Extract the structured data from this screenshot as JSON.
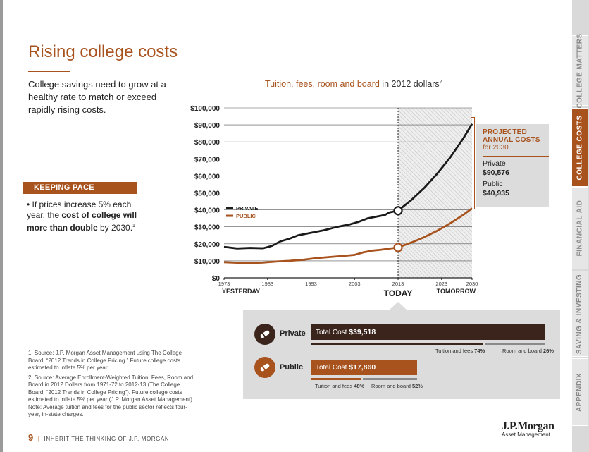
{
  "page": {
    "title": "Rising college costs",
    "intro": "College savings need to grow at a healthy rate to match or exceed rapidly rising costs.",
    "keeping_pace": {
      "label": "KEEPING PACE",
      "text_pre": "• If prices increase 5% each year, the ",
      "text_bold": "cost of college will more than double",
      "text_post": " by 2030.",
      "sup": "1"
    },
    "notes": [
      "1. Source: J.P. Morgan Asset Management using The College Board, “2012 Trends in College Pricing.” Future college costs estimated to inflate 5% per year.",
      "2. Source: Average Enrollment-Weighted Tuition, Fees, Room and Board in 2012 Dollars from 1971-72 to 2012-13 (The College Board, “2012 Trends in College Pricing”). Future college costs estimated to inflate 5% per year (J.P. Morgan Asset Management). Note: Average tuition and fees for the public sector reflects four-year, in-state charges."
    ],
    "footer": {
      "page_number": "9",
      "separator": "|",
      "text": "INHERIT THE THINKING OF J.P. MORGAN"
    },
    "logo": {
      "line1": "J.P.Morgan",
      "line2": "Asset Management"
    }
  },
  "side_tabs": [
    {
      "label": "COLLEGE MATTERS",
      "active": false
    },
    {
      "label": "COLLEGE COSTS",
      "active": true
    },
    {
      "label": "FINANCIAL AID",
      "active": false
    },
    {
      "label": "SAVING & INVESTING",
      "active": false
    },
    {
      "label": "APPENDIX",
      "active": false
    }
  ],
  "colors": {
    "accent": "#a8521d",
    "private": "#1a1a1a",
    "public": "#a8521d",
    "panel": "#dcdcdc",
    "bar_dark": "#3a241b"
  },
  "chart_data": {
    "type": "line",
    "title_bold": "Tuition, fees, room and board",
    "title_plain": " in 2012 dollars",
    "title_sup": "2",
    "x_ticks": [
      "1973",
      "1983",
      "1993",
      "2003",
      "2013",
      "2023",
      "2030"
    ],
    "x_captions": {
      "left": "YESTERDAY",
      "center": "TODAY",
      "right": "TOMORROW"
    },
    "y_ticks": [
      "$0",
      "$10,000",
      "$20,000",
      "$30,000",
      "$40,000",
      "$50,000",
      "$60,000",
      "$70,000",
      "$80,000",
      "$90,000",
      "$100,000"
    ],
    "ylim": [
      0,
      100000
    ],
    "xlim": [
      1973,
      2030
    ],
    "today_year": 2013,
    "grid": true,
    "legend_position": "left",
    "series": [
      {
        "name": "PRIVATE",
        "x": [
          1973,
          1976,
          1979,
          1982,
          1984,
          1986,
          1988,
          1990,
          1993,
          1996,
          1999,
          2002,
          2004,
          2006,
          2008,
          2010,
          2011,
          2013
        ],
        "y": [
          18200,
          17300,
          17600,
          17400,
          18800,
          21500,
          23000,
          25000,
          26500,
          28000,
          30000,
          31500,
          33000,
          35000,
          36000,
          37000,
          38500,
          39518
        ],
        "projection": {
          "x": [
            2013,
            2016,
            2019,
            2022,
            2025,
            2028,
            2030
          ],
          "y": [
            39518,
            45700,
            52900,
            61300,
            70900,
            82100,
            90576
          ]
        }
      },
      {
        "name": "PUBLIC",
        "x": [
          1973,
          1976,
          1979,
          1982,
          1985,
          1988,
          1991,
          1994,
          1997,
          2000,
          2003,
          2005,
          2007,
          2009,
          2011,
          2013
        ],
        "y": [
          9200,
          8900,
          8700,
          9000,
          9600,
          10000,
          10600,
          11500,
          12200,
          12800,
          13500,
          15000,
          16000,
          16500,
          17200,
          17860
        ],
        "projection": {
          "x": [
            2013,
            2016,
            2019,
            2022,
            2025,
            2028,
            2030
          ],
          "y": [
            17860,
            20700,
            23900,
            27700,
            32100,
            37100,
            40935
          ]
        }
      }
    ],
    "projected": {
      "heading": "PROJECTED ANNUAL COSTS",
      "sub": "for 2030",
      "items": [
        {
          "label": "Private",
          "value": "$90,576"
        },
        {
          "label": "Public",
          "value": "$40,935"
        }
      ]
    },
    "today_costs": [
      {
        "name": "Private",
        "total_label": "Total Cost",
        "total": "$39,518",
        "total_value": 39518,
        "tuition_label": "Tuition and fees",
        "tuition_pct": "74%",
        "tuition_value": 0.74,
        "room_label": "Room and board",
        "room_pct": "26%",
        "room_value": 0.26
      },
      {
        "name": "Public",
        "total_label": "Total Cost",
        "total": "$17,860",
        "total_value": 17860,
        "tuition_label": "Tuition and fees",
        "tuition_pct": "48%",
        "tuition_value": 0.48,
        "room_label": "Room and board",
        "room_pct": "52%",
        "room_value": 0.52
      }
    ]
  }
}
